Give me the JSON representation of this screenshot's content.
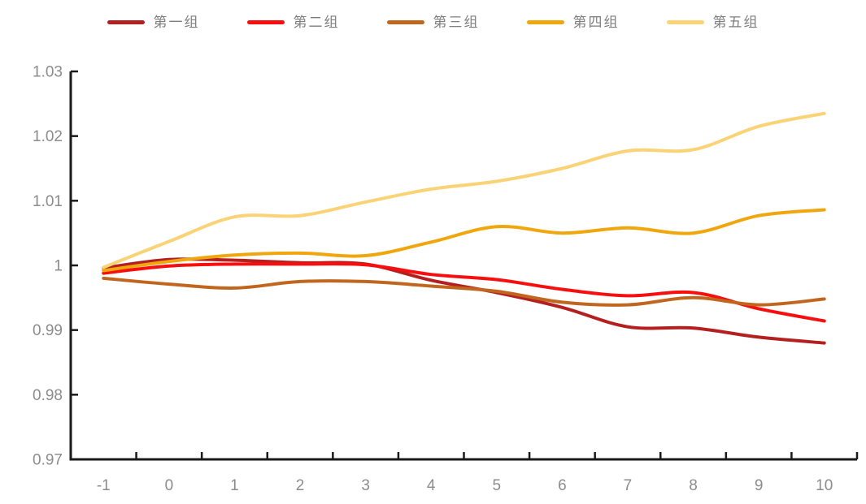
{
  "chart_data": {
    "type": "line",
    "title": "",
    "xlabel": "",
    "ylabel": "",
    "x_categories": [
      "-1",
      "0",
      "1",
      "2",
      "3",
      "4",
      "5",
      "6",
      "7",
      "8",
      "9",
      "10"
    ],
    "series": [
      {
        "name": "第一组",
        "color": "#B42020",
        "values": [
          0.9996,
          1.0009,
          1.0008,
          1.0004,
          1.0002,
          0.9977,
          0.9958,
          0.9935,
          0.9905,
          0.9903,
          0.9889,
          0.988
        ]
      },
      {
        "name": "第二组",
        "color": "#F70E0E",
        "values": [
          0.9988,
          0.9999,
          1.0002,
          1.0002,
          1.0001,
          0.9986,
          0.9978,
          0.9963,
          0.9953,
          0.9958,
          0.9933,
          0.9914
        ]
      },
      {
        "name": "第三组",
        "color": "#C0661F",
        "values": [
          0.998,
          0.9971,
          0.9965,
          0.9975,
          0.9975,
          0.9968,
          0.996,
          0.9943,
          0.9939,
          0.995,
          0.9939,
          0.9948
        ]
      },
      {
        "name": "第四组",
        "color": "#F0A60D",
        "values": [
          0.9992,
          1.0006,
          1.0016,
          1.0019,
          1.0015,
          1.0036,
          1.006,
          1.005,
          1.0058,
          1.005,
          1.0077,
          1.0086
        ]
      },
      {
        "name": "第五组",
        "color": "#FAD377",
        "values": [
          0.9997,
          1.0037,
          1.0075,
          1.0077,
          1.0098,
          1.0118,
          1.013,
          1.015,
          1.0177,
          1.0179,
          1.0215,
          1.0235
        ]
      }
    ],
    "ylim": [
      0.97,
      1.03
    ],
    "ytick_values": [
      0.97,
      0.98,
      0.99,
      1.0,
      1.01,
      1.02,
      1.03
    ],
    "yticks": [
      "0.97",
      "0.98",
      "0.99",
      "1",
      "1.01",
      "1.02",
      "1.03"
    ],
    "legend_position": "top",
    "grid": false,
    "smooth": true,
    "style": {
      "axis_color": "#1a1a1a",
      "tick_label_color": "#8c8c8c",
      "legend_text_color": "#7e7e7e",
      "background": "#ffffff"
    }
  }
}
